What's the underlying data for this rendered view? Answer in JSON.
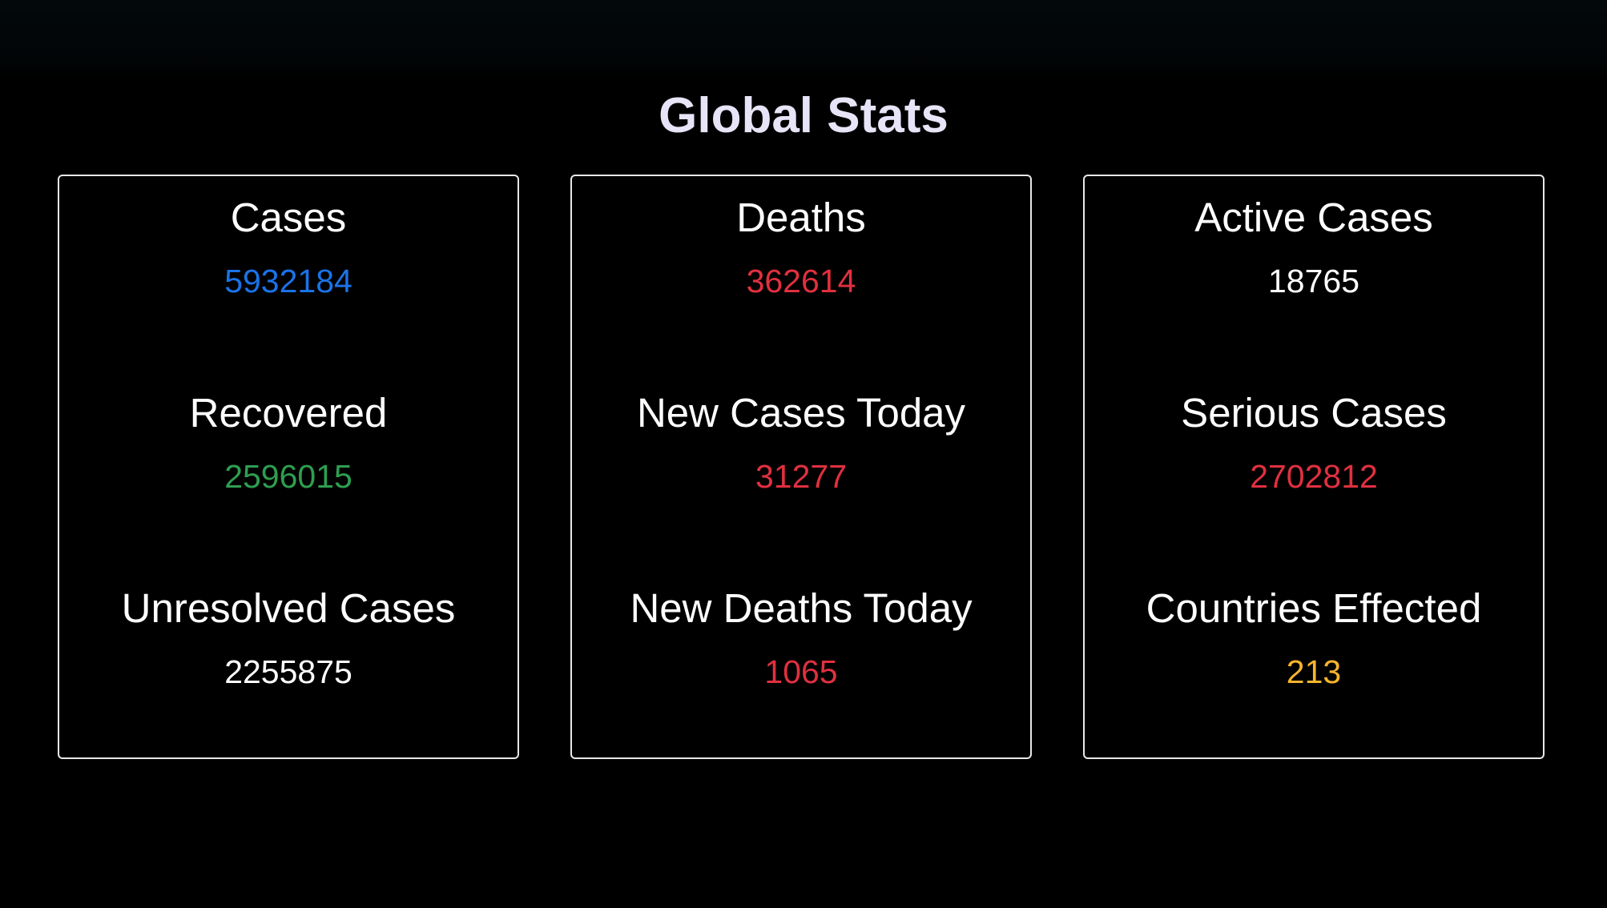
{
  "title": "Global Stats",
  "colors": {
    "blue": "#1a73e8",
    "green": "#2e9e4f",
    "red": "#e0303f",
    "white": "#ffffff",
    "orange": "#f7b52c"
  },
  "panels": [
    {
      "stats": [
        {
          "label": "Cases",
          "value": "5932184",
          "color": "#1a73e8"
        },
        {
          "label": "Recovered",
          "value": "2596015",
          "color": "#2e9e4f"
        },
        {
          "label": "Unresolved Cases",
          "value": "2255875",
          "color": "#ffffff"
        }
      ]
    },
    {
      "stats": [
        {
          "label": "Deaths",
          "value": "362614",
          "color": "#e0303f"
        },
        {
          "label": "New Cases Today",
          "value": "31277",
          "color": "#e0303f"
        },
        {
          "label": "New Deaths Today",
          "value": "1065",
          "color": "#e0303f"
        }
      ]
    },
    {
      "stats": [
        {
          "label": "Active Cases",
          "value": "18765",
          "color": "#ffffff"
        },
        {
          "label": "Serious Cases",
          "value": "2702812",
          "color": "#e0303f"
        },
        {
          "label": "Countries Effected",
          "value": "213",
          "color": "#f7b52c"
        }
      ]
    }
  ]
}
